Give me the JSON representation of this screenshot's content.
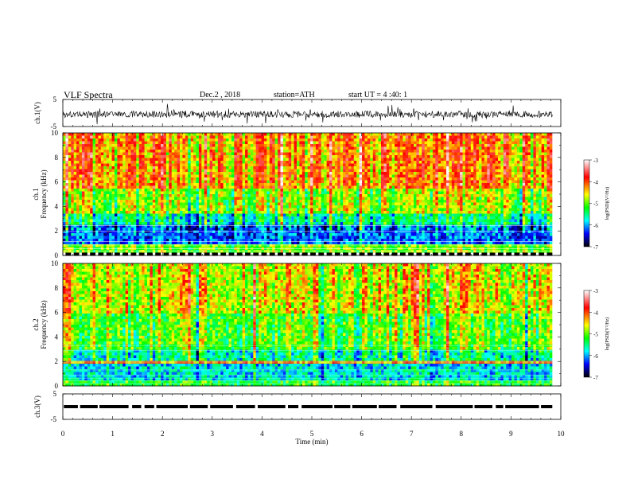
{
  "header": {
    "title": "VLF  Spectra",
    "date": "Dec.2  , 2018",
    "station": "station=ATH",
    "start": "start  UT  =   4  :40: 1"
  },
  "colorbar": {
    "label": "log(PSD)(V²/Hz)",
    "ticks": [
      "-3",
      "-4",
      "-5",
      "-6",
      "-7"
    ],
    "colors": [
      "#ffffff",
      "#ff0000",
      "#ffff00",
      "#00ff00",
      "#00ffff",
      "#0000ff",
      "#000000"
    ]
  },
  "chart_data": [
    {
      "type": "line",
      "name": "ch1-waveform",
      "ylabel": "ch.1(V)",
      "ylim": [
        -5,
        5
      ],
      "yticks": [
        "5",
        "-5"
      ],
      "xlim": [
        0,
        10
      ],
      "description_values": {
        "mean": -0.5,
        "amplitude": 2.5
      }
    },
    {
      "type": "heatmap",
      "name": "ch1-spectrogram",
      "ylabel": "ch.1\nFrequency  (kHz)",
      "ylabel_line1": "ch.1",
      "ylabel_line2": "Frequency  (kHz)",
      "xlim": [
        0,
        10
      ],
      "ylim": [
        0,
        10
      ],
      "yticks": [
        "0",
        "2",
        "4",
        "6",
        "8",
        "10"
      ],
      "color_scale": [
        -7,
        -3
      ]
    },
    {
      "type": "heatmap",
      "name": "ch2-spectrogram",
      "ylabel_line1": "ch.2",
      "ylabel_line2": "Frequency  (kHz)",
      "xlim": [
        0,
        10
      ],
      "ylim": [
        0,
        10
      ],
      "yticks": [
        "0",
        "2",
        "4",
        "6",
        "8",
        "10"
      ],
      "color_scale": [
        -7,
        -3
      ]
    },
    {
      "type": "line",
      "name": "ch3-timing",
      "ylabel": "ch.3(V)",
      "ylim": [
        -5,
        5
      ],
      "yticks": [
        "5",
        "-5"
      ],
      "level": 0.0,
      "xlim": [
        0,
        10
      ]
    }
  ],
  "xaxis": {
    "label": "Time  (min)",
    "ticks": [
      "0",
      "1",
      "2",
      "3",
      "4",
      "5",
      "6",
      "7",
      "8",
      "9",
      "10"
    ],
    "data_end": 9.83
  }
}
